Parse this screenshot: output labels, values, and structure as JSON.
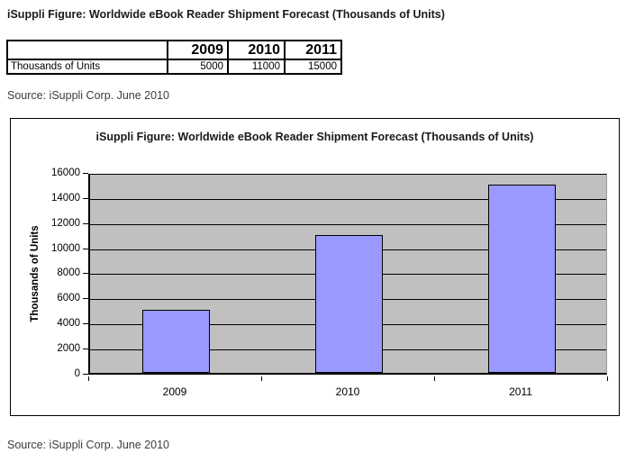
{
  "page": {
    "title": "iSuppli Figure: Worldwide eBook Reader Shipment Forecast (Thousands of Units)",
    "source_top": "Source: iSuppli Corp. June 2010",
    "source_bottom": "Source: iSuppli Corp. June 2010"
  },
  "table": {
    "header": [
      "",
      "2009",
      "2010",
      "2011"
    ],
    "rows": [
      [
        "Thousands of Units",
        "5000",
        "11000",
        "15000"
      ]
    ]
  },
  "chart_data": {
    "type": "bar",
    "title": "iSuppli Figure: Worldwide eBook Reader Shipment Forecast (Thousands of Units)",
    "categories": [
      "2009",
      "2010",
      "2011"
    ],
    "values": [
      5000,
      11000,
      15000
    ],
    "xlabel": "",
    "ylabel": "Thousands of Units",
    "ylim": [
      0,
      16000
    ],
    "ytick_step": 2000,
    "grid": true,
    "legend": false,
    "plot_bg": "#c0c0c0",
    "bar_color": "#9999ff",
    "bar_border": "#000000"
  }
}
